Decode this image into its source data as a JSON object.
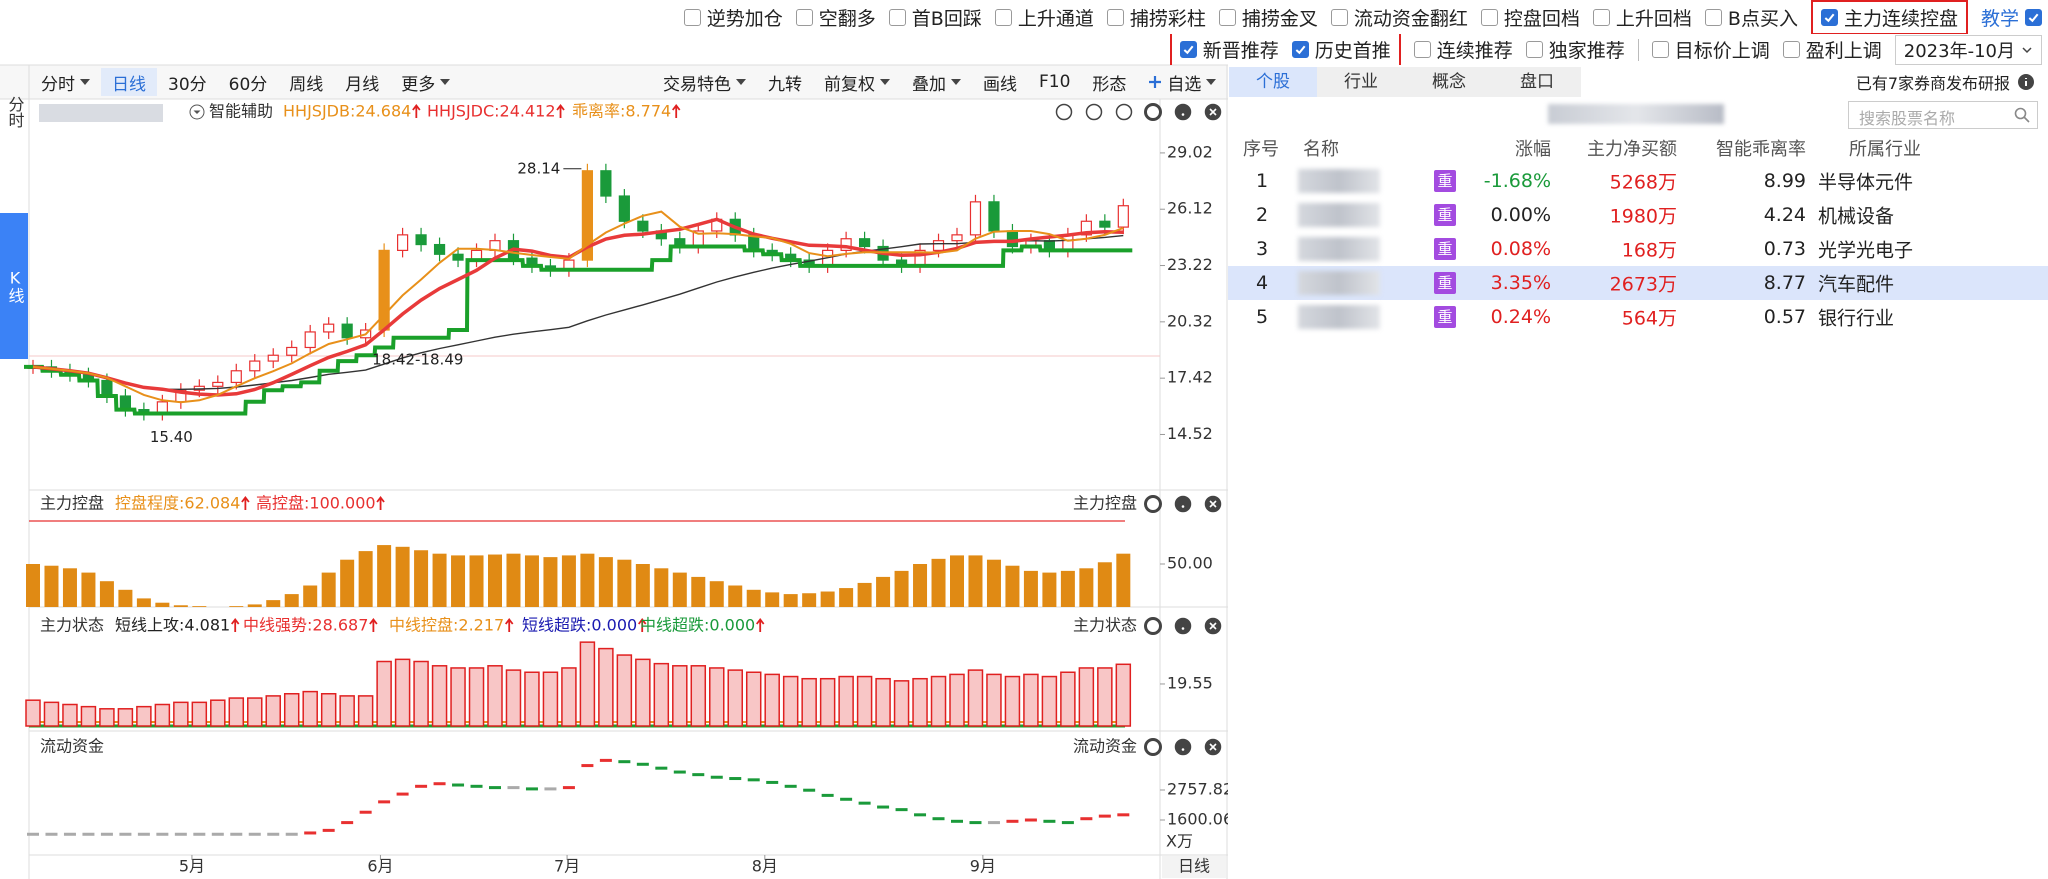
{
  "toolbar": {
    "row1": [
      {
        "label": "逆势加仓",
        "checked": false
      },
      {
        "label": "空翻多",
        "checked": false
      },
      {
        "label": "首B回踩",
        "checked": false
      },
      {
        "label": "上升通道",
        "checked": false
      },
      {
        "label": "捕捞彩柱",
        "checked": false
      },
      {
        "label": "捕捞金叉",
        "checked": false
      },
      {
        "label": "流动资金翻红",
        "checked": false
      },
      {
        "label": "控盘回档",
        "checked": false
      },
      {
        "label": "上升回档",
        "checked": false
      },
      {
        "label": "B点买入",
        "checked": false
      },
      {
        "label": "主力连续控盘",
        "checked": true,
        "highlight": true
      }
    ],
    "teach": {
      "label": "教学",
      "checked": true
    },
    "row2": [
      {
        "label": "新晋推荐",
        "checked": true,
        "highlight": true
      },
      {
        "label": "历史首推",
        "checked": true,
        "highlight": true
      },
      {
        "label": "连续推荐",
        "checked": false
      },
      {
        "label": "独家推荐",
        "checked": false
      }
    ],
    "row2b": [
      {
        "label": "目标价上调",
        "checked": false
      },
      {
        "label": "盈利上调",
        "checked": false
      }
    ],
    "month_select": "2023年-10月"
  },
  "period_tabs": {
    "items": [
      {
        "label": "分时",
        "menu": true
      },
      {
        "label": "日线"
      },
      {
        "label": "30分"
      },
      {
        "label": "60分"
      },
      {
        "label": "周线"
      },
      {
        "label": "月线"
      },
      {
        "label": "更多",
        "menu": true
      }
    ],
    "active": 1
  },
  "tool_tabs": [
    {
      "label": "交易特色",
      "menu": true
    },
    {
      "label": "九转"
    },
    {
      "label": "前复权",
      "menu": true
    },
    {
      "label": "叠加",
      "menu": true
    },
    {
      "label": "画线"
    },
    {
      "label": "F10"
    },
    {
      "label": "形态"
    },
    {
      "label": "自选",
      "icon": "plus",
      "menu": true
    }
  ],
  "side_tabs": {
    "items": [
      "分时",
      "K线"
    ],
    "active": 1
  },
  "chart_data": [
    {
      "type": "candlestick",
      "title": "智能辅助",
      "indicators": [
        {
          "text": "HHJSJDB:24.684",
          "color": "#e8901a"
        },
        {
          "text": "HHJSJDC:24.412",
          "color": "#e83030"
        },
        {
          "text": "乖离率:8.774",
          "color": "#e8901a"
        }
      ],
      "values": [
        18.0,
        17.8,
        17.6,
        17.3,
        16.5,
        15.8,
        15.6,
        16.2,
        16.8,
        17.0,
        17.2,
        17.8,
        18.3,
        18.6,
        19.0,
        19.8,
        20.2,
        19.5,
        19.9,
        24.0,
        24.8,
        24.3,
        23.8,
        23.5,
        24.0,
        24.5,
        23.6,
        23.2,
        23.0,
        23.5,
        28.1,
        26.8,
        25.5,
        25.0,
        24.6,
        24.2,
        25.0,
        25.6,
        24.8,
        24.0,
        23.8,
        23.5,
        23.2,
        24.0,
        24.6,
        24.2,
        23.5,
        23.2,
        24.0,
        24.5,
        24.8,
        26.5,
        25.0,
        24.2,
        24.5,
        24.0,
        24.8,
        25.5,
        25.2,
        26.3
      ],
      "ylim": [
        13.72,
        30.2
      ],
      "yticks": [
        29.02,
        26.12,
        23.22,
        20.32,
        17.42,
        14.52
      ],
      "xticks": [
        {
          "value": 8.6,
          "label": "5月"
        },
        {
          "value": 18.8,
          "label": "6月"
        },
        {
          "value": 28.9,
          "label": "7月"
        },
        {
          "value": 39.6,
          "label": "8月"
        },
        {
          "value": 51.4,
          "label": "9月"
        }
      ],
      "x_axis_label": "日线",
      "annotations": [
        "28.14",
        "18.42-18.49",
        "15.40"
      ],
      "up_color": "#e83030",
      "down_color": "#1a9a3a",
      "surge_color": "#e8901a"
    },
    {
      "type": "bar",
      "title": "主力控盘",
      "indicators": [
        {
          "text": "控盘程度:62.084",
          "color": "#e8901a"
        },
        {
          "text": "高控盘:100.000",
          "color": "#e83030"
        }
      ],
      "values": [
        50,
        48,
        45,
        40,
        30,
        20,
        10,
        5,
        2,
        1,
        0,
        1,
        3,
        8,
        15,
        25,
        40,
        55,
        65,
        72,
        70,
        66,
        62,
        60,
        60,
        61,
        62,
        60,
        58,
        60,
        62,
        58,
        55,
        50,
        45,
        40,
        35,
        30,
        25,
        20,
        17,
        15,
        16,
        18,
        22,
        28,
        35,
        42,
        50,
        56,
        60,
        60,
        55,
        48,
        42,
        40,
        42,
        45,
        52,
        62
      ],
      "color": "#e08a14",
      "reference_line": 100,
      "reference_color": "#e83030",
      "ylim": [
        0,
        100
      ],
      "yticks": [
        {
          "value": 50,
          "label": "50.00"
        }
      ]
    },
    {
      "type": "bar",
      "title": "主力状态",
      "indicators": [
        {
          "text": "短线上攻:4.081",
          "color": "#222222"
        },
        {
          "text": "中线强势:28.687",
          "color": "#e83030"
        },
        {
          "text": "中线控盘:2.217",
          "color": "#e8901a"
        },
        {
          "text": "短线超跌:0.000",
          "color": "#1a1ab0"
        },
        {
          "text": "中线超跌:0.000",
          "color": "#1a9a3a"
        }
      ],
      "values": [
        12,
        11,
        10,
        9,
        8,
        8,
        9,
        10,
        11,
        11,
        12,
        13,
        13,
        14,
        15,
        16,
        15,
        14,
        14,
        30,
        31,
        30,
        28,
        27,
        27,
        28,
        26,
        25,
        25,
        27,
        39,
        36,
        33,
        31,
        29,
        28,
        28,
        27,
        26,
        25,
        24,
        23,
        22,
        22,
        23,
        23,
        22,
        21,
        22,
        23,
        24,
        26,
        24,
        23,
        24,
        23,
        25,
        27,
        27,
        28.7
      ],
      "color": "#e02020",
      "fill": "#f8c6c6",
      "ylim": [
        0,
        40
      ],
      "yticks": [
        19.55
      ]
    },
    {
      "type": "dots",
      "title": "流动资金",
      "values": [
        1050,
        1050,
        1050,
        1050,
        1050,
        1050,
        1050,
        1050,
        1050,
        1050,
        1050,
        1050,
        1050,
        1050,
        1050,
        1100,
        1200,
        1500,
        1900,
        2300,
        2600,
        2900,
        3000,
        2950,
        2900,
        2850,
        2850,
        2800,
        2800,
        2850,
        3700,
        3900,
        3850,
        3750,
        3600,
        3450,
        3350,
        3250,
        3200,
        3150,
        3050,
        2900,
        2750,
        2550,
        2400,
        2250,
        2100,
        2000,
        1800,
        1650,
        1550,
        1500,
        1500,
        1550,
        1600,
        1550,
        1500,
        1650,
        1750,
        1800
      ],
      "ylim": [
        520,
        4108
      ],
      "yticks": [
        2757.82,
        1600.06
      ],
      "unit": "X万",
      "up_color": "#e83030",
      "down_color": "#1a9a3a",
      "flat_color": "#aaaaaa"
    }
  ],
  "stock_panel": {
    "tabs": [
      "个股",
      "行业",
      "概念",
      "盘口"
    ],
    "active": 0,
    "notice": "已有7家券商发布研报",
    "search_placeholder": "搜索股票名称",
    "columns": [
      "序号",
      "名称",
      "涨幅",
      "主力净买额",
      "智能乖离率",
      "所属行业"
    ],
    "rows": [
      {
        "rank": 1,
        "tag": "重",
        "change": "-1.68%",
        "net_buy": "5268万",
        "deviation": 8.99,
        "industry": "半导体元件"
      },
      {
        "rank": 2,
        "tag": "重",
        "change": "0.00%",
        "net_buy": "1980万",
        "deviation": 4.24,
        "industry": "机械设备"
      },
      {
        "rank": 3,
        "tag": "重",
        "change": "0.08%",
        "net_buy": "168万",
        "deviation": 0.73,
        "industry": "光学光电子"
      },
      {
        "rank": 4,
        "tag": "重",
        "change": "3.35%",
        "net_buy": "2673万",
        "deviation": 8.77,
        "industry": "汽车配件"
      },
      {
        "rank": 5,
        "tag": "重",
        "change": "0.24%",
        "net_buy": "564万",
        "deviation": 0.57,
        "industry": "银行行业"
      }
    ],
    "selected_row": 3
  }
}
